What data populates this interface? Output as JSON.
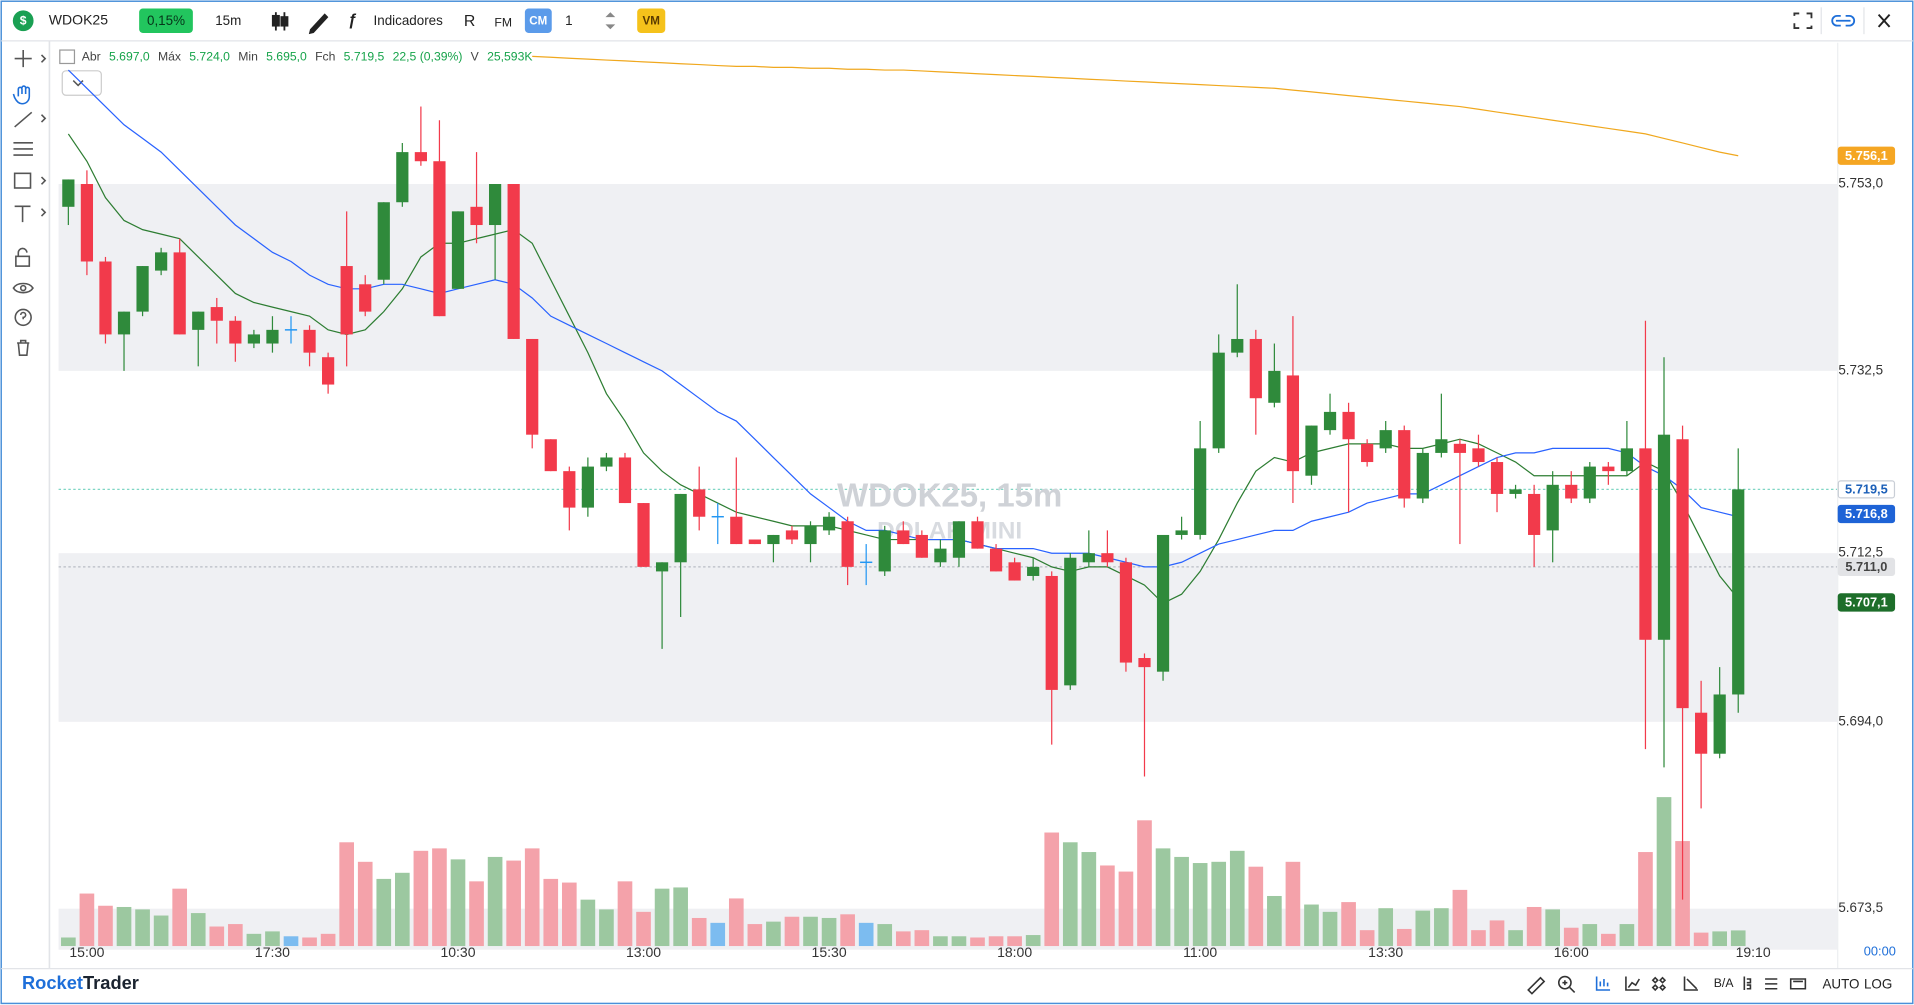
{
  "toolbar": {
    "symbol_icon": "$",
    "symbol": "WDOK25",
    "change": "0,15%",
    "interval": "15m",
    "indicators": "Indicadores",
    "rx": "R",
    "fm": "FM",
    "cm": "CM",
    "quantity": "1",
    "vm": "VM"
  },
  "chart_data": {
    "type": "candlestick",
    "legend": {
      "open_label": "Abr",
      "open": "5.697,0",
      "high_label": "Máx",
      "high": "5.724,0",
      "low_label": "Min",
      "low": "5.695,0",
      "close_label": "Fch",
      "close": "5.719,5",
      "change": "22,5 (0,39%)",
      "volume_label": "V",
      "volume": "25,593K"
    },
    "watermark": "WDOK25, 15m",
    "watermark_sub": "DOLAR MINI",
    "categories": [
      null,
      "15:00",
      null,
      null,
      null,
      null,
      null,
      null,
      null,
      null,
      null,
      "17:30",
      null,
      null,
      null,
      null,
      null,
      null,
      null,
      null,
      null,
      "10:30",
      null,
      null,
      null,
      null,
      null,
      null,
      null,
      null,
      null,
      "13:00",
      null,
      null,
      null,
      null,
      null,
      null,
      null,
      null,
      null,
      "15:30",
      null,
      null,
      null,
      null,
      null,
      null,
      null,
      null,
      null,
      "18:00",
      null,
      null,
      null,
      null,
      null,
      null,
      null,
      null,
      null,
      "11:00",
      null,
      null,
      null,
      null,
      null,
      null,
      null,
      null,
      null,
      "13:30",
      null,
      null,
      null,
      null,
      null,
      null,
      null,
      null,
      null,
      "16:00",
      null,
      null,
      null,
      null,
      null,
      null,
      null,
      null,
      null
    ],
    "open": [
      5750.5,
      5753,
      5744.5,
      5736.5,
      5739,
      5743.5,
      5745.5,
      5737,
      5739.5,
      5738,
      5735.5,
      5735.5,
      5737,
      5737,
      5734,
      5744,
      5742,
      5742.5,
      5751,
      5756.5,
      5755.5,
      5741.5,
      5750.5,
      5748.5,
      5753,
      5736,
      5725,
      5721.5,
      5717.5,
      5722,
      5723,
      5718,
      5710.5,
      5711.5,
      5719.5,
      5716.5,
      5716.5,
      5714,
      5713.5,
      5715,
      5713.5,
      5715,
      5716,
      5711.5,
      5710.5,
      5715,
      5714.5,
      5711.5,
      5712,
      5716,
      5713,
      5711.5,
      5710,
      5710,
      5698,
      5711.5,
      5712.5,
      5711.5,
      5701,
      5699.5,
      5714.5,
      5714.5,
      5724,
      5734.5,
      5736,
      5729,
      5732,
      5721,
      5726,
      5728,
      5724.5,
      5724,
      5726,
      5718.5,
      5723.5,
      5724.5,
      5724,
      5722.5,
      5719,
      5719,
      5715,
      5720,
      5718.5,
      5722,
      5721.5,
      5724,
      5703,
      5725,
      5695,
      5690.5,
      5697
    ],
    "high": [
      5753.5,
      5754.5,
      5745,
      5739,
      5744,
      5746,
      5747,
      5739,
      5740.5,
      5738.5,
      5737,
      5738.5,
      5738.5,
      5737.5,
      5734.5,
      5750,
      5743,
      5751,
      5757.5,
      5761.5,
      5760,
      5750,
      5756.5,
      5753,
      5753,
      5736,
      5725,
      5722,
      5723,
      5723.5,
      5723.5,
      5718,
      5711.5,
      5719,
      5722,
      5718,
      5723,
      5714,
      5714.5,
      5715.5,
      5716,
      5717,
      5716.5,
      5713.5,
      5715.5,
      5716,
      5715,
      5714,
      5716,
      5716.5,
      5713.5,
      5712,
      5712,
      5710.5,
      5712.5,
      5715,
      5715,
      5712,
      5701.5,
      5714.5,
      5716.5,
      5727,
      5736.5,
      5742,
      5737,
      5735.5,
      5738.5,
      5726.5,
      5730,
      5729,
      5725,
      5727,
      5726.5,
      5724,
      5730,
      5725,
      5725.5,
      5723,
      5720,
      5720,
      5721.5,
      5721.5,
      5722.5,
      5722.5,
      5727,
      5738,
      5734,
      5726.5,
      5698.5,
      5700,
      5724
    ],
    "low": [
      5748.5,
      5743,
      5735.5,
      5732.5,
      5738.5,
      5743,
      5736.5,
      5733,
      5735.5,
      5733.5,
      5735,
      5734.5,
      5735.5,
      5733,
      5730,
      5733,
      5738.5,
      5742,
      5750.5,
      5755,
      5738.5,
      5741.5,
      5746.5,
      5742.5,
      5736,
      5724,
      5721.5,
      5715,
      5716.5,
      5721.5,
      5718,
      5711,
      5702,
      5705.5,
      5715,
      5713.5,
      5713.5,
      5713.5,
      5711.5,
      5713.5,
      5711.5,
      5714.5,
      5709,
      5709,
      5710,
      5713.5,
      5712,
      5711,
      5711,
      5713,
      5710.5,
      5709.5,
      5709.5,
      5691.5,
      5697.5,
      5711,
      5711,
      5699.5,
      5688,
      5698.5,
      5714,
      5714,
      5723.5,
      5734,
      5725.5,
      5728.5,
      5718,
      5720,
      5725.5,
      5717,
      5722,
      5723.5,
      5717.5,
      5718,
      5723,
      5713.5,
      5722,
      5717,
      5718.5,
      5711,
      5711.5,
      5718,
      5718,
      5720,
      5721,
      5691,
      5689,
      5674.5,
      5684.5,
      5690,
      5695
    ],
    "close": [
      5753.5,
      5744.5,
      5736.5,
      5739,
      5744,
      5745.5,
      5736.5,
      5739,
      5738,
      5735.5,
      5736.5,
      5737,
      5737,
      5734.5,
      5731,
      5736.5,
      5739,
      5751,
      5756.5,
      5755.5,
      5738.5,
      5750,
      5748.5,
      5753,
      5736,
      5725.5,
      5721.5,
      5717.5,
      5722,
      5723,
      5718,
      5711,
      5711.5,
      5719,
      5716.5,
      5716.5,
      5713.5,
      5713.5,
      5714.5,
      5714,
      5715.5,
      5716.5,
      5711,
      5711.5,
      5715,
      5713.5,
      5712,
      5713,
      5716,
      5713,
      5710.5,
      5709.5,
      5711,
      5697.5,
      5712,
      5712.5,
      5711.5,
      5700.5,
      5700,
      5714.5,
      5715,
      5724,
      5734.5,
      5736,
      5729.5,
      5732.5,
      5721.5,
      5726.5,
      5728,
      5725,
      5722.5,
      5726,
      5718.5,
      5723.5,
      5725,
      5723.5,
      5722.5,
      5719,
      5719.5,
      5714.5,
      5720,
      5718.5,
      5722,
      5721.5,
      5724,
      5703,
      5725.5,
      5695.5,
      5690.5,
      5697,
      5719.5
    ],
    "up_color": "#2f8a3b",
    "down_color": "#f23a4b",
    "flat_color": "#2196f3",
    "volume": {
      "ylim": [
        0,
        350
      ],
      "up_color": "#9cc8a0",
      "down_color": "#f4a2aa",
      "flat_color": "#7cbcf0",
      "values": [
        14,
        86,
        66,
        64,
        60,
        50,
        94,
        54,
        32,
        36,
        20,
        24,
        16,
        14,
        20,
        170,
        138,
        110,
        120,
        156,
        160,
        142,
        106,
        146,
        140,
        160,
        110,
        104,
        76,
        60,
        106,
        56,
        94,
        96,
        46,
        38,
        78,
        36,
        40,
        48,
        48,
        46,
        52,
        38,
        36,
        24,
        26,
        16,
        16,
        14,
        16,
        16,
        18,
        186,
        170,
        154,
        132,
        122,
        206,
        160,
        146,
        136,
        138,
        156,
        130,
        82,
        138,
        68,
        56,
        72,
        26,
        62,
        28,
        58,
        62,
        92,
        26,
        42,
        26,
        64,
        60,
        30,
        36,
        20,
        36,
        154,
        244,
        172,
        22,
        24,
        25.593
      ]
    },
    "moving_averages": [
      {
        "color": "#2d7d32",
        "values": [
          5758.5,
          5755.5,
          5751.5,
          5749,
          5748,
          5747.5,
          5747,
          5745,
          5743,
          5741,
          5740,
          5739.5,
          5739,
          5738.5,
          5737,
          5736.5,
          5737,
          5739,
          5741.5,
          5745,
          5746.5,
          5746.5,
          5747,
          5747.5,
          5748,
          5746.5,
          5742.5,
          5738.5,
          5734.5,
          5730,
          5727,
          5723.5,
          5721.5,
          5720,
          5719,
          5718,
          5717,
          5716.5,
          5716,
          5715.5,
          5715.5,
          5715.5,
          5715,
          5714.5,
          5714,
          5714,
          5714,
          5714,
          5714,
          5713.5,
          5713,
          5712.5,
          5712,
          5711,
          5710.5,
          5711,
          5711,
          5710,
          5709,
          5707,
          5708,
          5710.5,
          5714,
          5718,
          5721.5,
          5723,
          5722.5,
          5723.5,
          5724,
          5724.5,
          5724.5,
          5724.5,
          5724,
          5724,
          5724.5,
          5725,
          5724.5,
          5723.5,
          5722.5,
          5721,
          5721,
          5721,
          5721,
          5721,
          5721,
          5722.5,
          5721.5,
          5718,
          5714,
          5710,
          5707.5
        ]
      },
      {
        "color": "#2962ff",
        "values": [
          5765.5,
          5763.5,
          5761.5,
          5759.5,
          5758,
          5756.5,
          5754.5,
          5752.5,
          5750.5,
          5748.5,
          5747,
          5745.5,
          5744.5,
          5743,
          5742,
          5741.5,
          5741.5,
          5742,
          5742,
          5741.5,
          5741,
          5741.5,
          5742,
          5742.5,
          5742,
          5740.5,
          5738.5,
          5737.5,
          5736.5,
          5735.5,
          5734.5,
          5733.5,
          5732.5,
          5731,
          5729.5,
          5728,
          5727,
          5725,
          5723,
          5721,
          5719,
          5717.5,
          5716,
          5715,
          5715,
          5714.5,
          5714,
          5714,
          5714,
          5713.5,
          5713,
          5713,
          5713,
          5712.5,
          5712.5,
          5712.5,
          5712,
          5711.5,
          5711,
          5711,
          5711.5,
          5712.5,
          5713.5,
          5714,
          5714.5,
          5715,
          5715,
          5716,
          5716.5,
          5717,
          5718,
          5718.5,
          5719,
          5719,
          5720,
          5721,
          5722,
          5723,
          5723.5,
          5723.5,
          5724,
          5724,
          5724,
          5724,
          5723.5,
          5722,
          5721,
          5719.5,
          5717.5,
          5717,
          5716.5
        ]
      },
      {
        "color": "#f0a81e",
        "values": [
          null,
          null,
          null,
          null,
          null,
          null,
          null,
          null,
          null,
          null,
          null,
          null,
          null,
          null,
          null,
          null,
          null,
          null,
          null,
          null,
          null,
          null,
          null,
          null,
          null,
          5767.0,
          5766.9,
          5766.8,
          5766.7,
          5766.6,
          5766.5,
          5766.4,
          5766.3,
          5766.2,
          5766.1,
          5766.0,
          5765.9,
          5765.9,
          5765.8,
          5765.8,
          5765.7,
          5765.7,
          5765.6,
          5765.6,
          5765.5,
          5765.5,
          5765.4,
          5765.3,
          5765.2,
          5765.1,
          5765.0,
          5764.9,
          5764.8,
          5764.7,
          5764.6,
          5764.5,
          5764.4,
          5764.3,
          5764.2,
          5764.1,
          5764.0,
          5763.9,
          5763.8,
          5763.7,
          5763.6,
          5763.5,
          5763.3,
          5763.1,
          5762.9,
          5762.7,
          5762.5,
          5762.3,
          5762.1,
          5761.9,
          5761.7,
          5761.5,
          5761.2,
          5760.9,
          5760.6,
          5760.3,
          5760.0,
          5759.7,
          5759.4,
          5759.1,
          5758.8,
          5758.5,
          5758.0,
          5757.5,
          5757.0,
          5756.5,
          5756.1
        ]
      }
    ],
    "ylim": [
      5669,
      5768.5
    ],
    "yticks": [
      {
        "value": 5753,
        "label": "5.753,0"
      },
      {
        "value": 5732.5,
        "label": "5.732,5"
      },
      {
        "value": 5712.5,
        "label": "5.712,5"
      },
      {
        "value": 5694,
        "label": "5.694,0"
      },
      {
        "value": 5673.5,
        "label": "5.673,5"
      }
    ],
    "band_color": "#eff0f3",
    "price_tags": [
      {
        "value": 5756.1,
        "label": "5.756,1",
        "color": "#f5a623",
        "text_color": "#ffffff"
      },
      {
        "value": 5719.5,
        "label": "5.719,5",
        "color": "#ffffff",
        "text_color": "#1b5fb8",
        "dotted_line": "#7fd6c4"
      },
      {
        "value": 5716.8,
        "label": "5.716,8",
        "color": "#1e63d6",
        "text_color": "#ffffff"
      },
      {
        "value": 5711,
        "label": "5.711,0",
        "color": "#e2e3e6",
        "text_color": "#444444",
        "dotted_line": "#b8bcc4"
      },
      {
        "value": 5707.1,
        "label": "5.707,1",
        "color": "#1d6e2a",
        "text_color": "#ffffff"
      }
    ],
    "time_cursor_label": "19:10",
    "countdown": "00:00"
  },
  "footer": {
    "brand_1": "Rocket",
    "brand_2": "Trader",
    "ba": "B/A",
    "auto": "AUTO",
    "log": "LOG"
  }
}
